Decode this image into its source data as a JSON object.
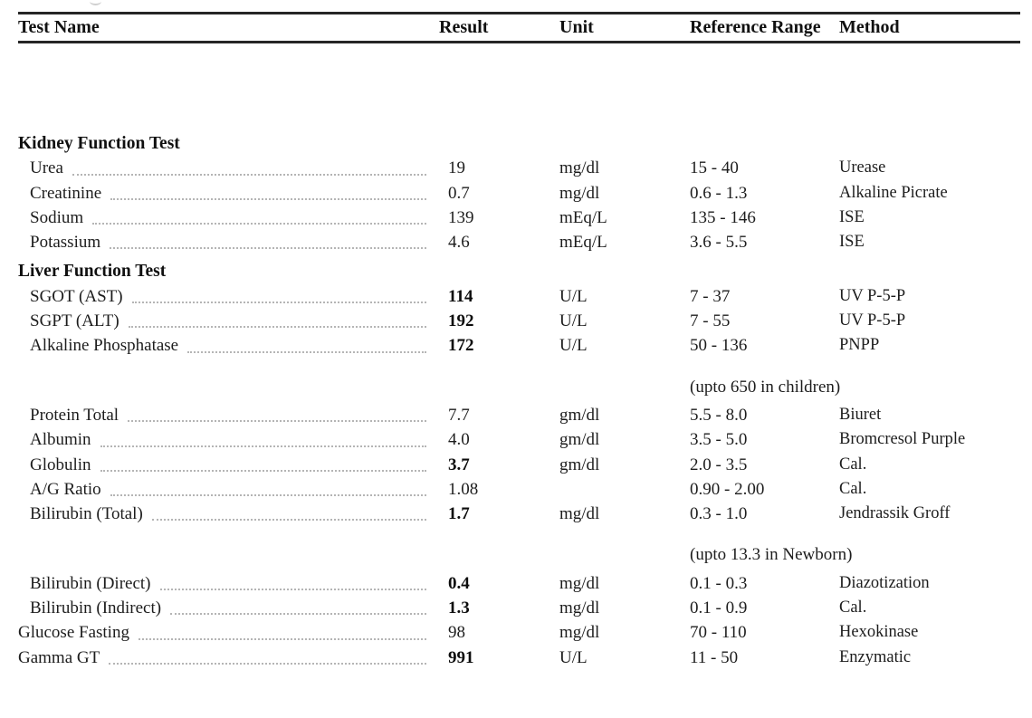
{
  "header": {
    "test_name": "Test Name",
    "result": "Result",
    "unit": "Unit",
    "reference_range": "Reference Range",
    "method": "Method"
  },
  "colors": {
    "ink": "#1d1d1d",
    "rule": "#262626",
    "leader_dots": "#b5b5b5",
    "background": "#ffffff"
  },
  "rows": [
    {
      "type": "section",
      "name": "Kidney Function Test"
    },
    {
      "type": "test",
      "indent": true,
      "name": "Urea",
      "result": "19",
      "result_bold": false,
      "unit": "mg/dl",
      "range": "15 - 40",
      "method": "Urease"
    },
    {
      "type": "test",
      "indent": true,
      "name": "Creatinine",
      "result": "0.7",
      "result_bold": false,
      "unit": "mg/dl",
      "range": "0.6 - 1.3",
      "method": "Alkaline Picrate"
    },
    {
      "type": "test",
      "indent": true,
      "name": "Sodium",
      "result": "139",
      "result_bold": false,
      "unit": "mEq/L",
      "range": "135 - 146",
      "method": "ISE"
    },
    {
      "type": "test",
      "indent": true,
      "name": "Potassium",
      "result": "4.6",
      "result_bold": false,
      "unit": "mEq/L",
      "range": "3.6 - 5.5",
      "method": "ISE"
    },
    {
      "type": "section",
      "name": "Liver Function Test"
    },
    {
      "type": "test",
      "indent": true,
      "name": "SGOT (AST)",
      "result": "114",
      "result_bold": true,
      "unit": "U/L",
      "range": "7 - 37",
      "method": "UV P-5-P"
    },
    {
      "type": "test",
      "indent": true,
      "name": "SGPT (ALT)",
      "result": "192",
      "result_bold": true,
      "unit": "U/L",
      "range": "7 - 55",
      "method": "UV P-5-P"
    },
    {
      "type": "test",
      "indent": true,
      "name": "Alkaline Phosphatase",
      "result": "172",
      "result_bold": true,
      "unit": "U/L",
      "range": "50 - 136",
      "method": "PNPP"
    },
    {
      "type": "note",
      "range": "(upto 650 in children)"
    },
    {
      "type": "test",
      "indent": true,
      "name": "Protein Total",
      "result": "7.7",
      "result_bold": false,
      "unit": "gm/dl",
      "range": "5.5 - 8.0",
      "method": "Biuret"
    },
    {
      "type": "test",
      "indent": true,
      "name": "Albumin",
      "result": "4.0",
      "result_bold": false,
      "unit": "gm/dl",
      "range": "3.5 - 5.0",
      "method": "Bromcresol Purple"
    },
    {
      "type": "test",
      "indent": true,
      "name": "Globulin",
      "result": "3.7",
      "result_bold": true,
      "unit": "gm/dl",
      "range": "2.0 - 3.5",
      "method": "Cal."
    },
    {
      "type": "test",
      "indent": true,
      "name": "A/G Ratio",
      "result": "1.08",
      "result_bold": false,
      "unit": "",
      "range": "0.90 - 2.00",
      "method": "Cal."
    },
    {
      "type": "test",
      "indent": true,
      "name": "Bilirubin (Total)",
      "result": "1.7",
      "result_bold": true,
      "unit": "mg/dl",
      "range": "0.3 - 1.0",
      "method": "Jendrassik Groff"
    },
    {
      "type": "note",
      "range": "(upto 13.3 in Newborn)"
    },
    {
      "type": "test",
      "indent": true,
      "name": "Bilirubin (Direct)",
      "result": "0.4",
      "result_bold": true,
      "unit": "mg/dl",
      "range": "0.1 - 0.3",
      "method": "Diazotization"
    },
    {
      "type": "test",
      "indent": true,
      "name": "Bilirubin (Indirect)",
      "result": "1.3",
      "result_bold": true,
      "unit": "mg/dl",
      "range": "0.1 - 0.9",
      "method": "Cal."
    },
    {
      "type": "test",
      "indent": false,
      "name": "Glucose Fasting",
      "result": "98",
      "result_bold": false,
      "unit": "mg/dl",
      "range": "70 - 110",
      "method": "Hexokinase"
    },
    {
      "type": "test",
      "indent": false,
      "name": "Gamma GT",
      "result": "991",
      "result_bold": true,
      "unit": "U/L",
      "range": "11 - 50",
      "method": "Enzymatic"
    }
  ]
}
